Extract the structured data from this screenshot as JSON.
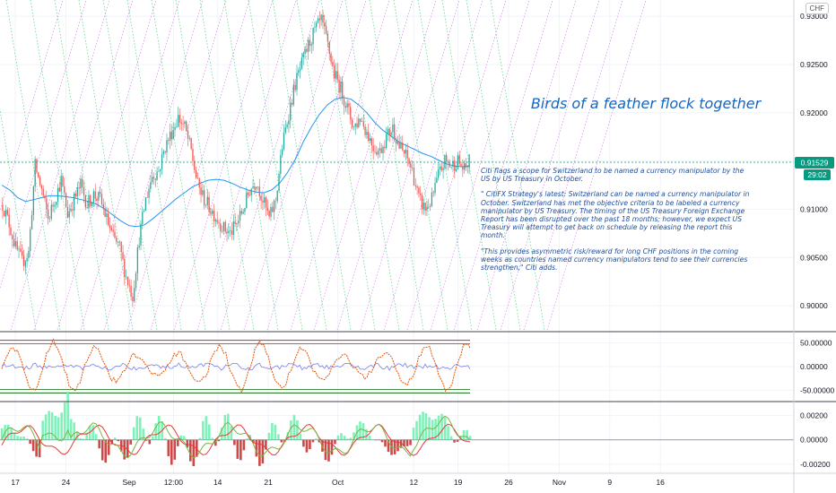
{
  "instrument": {
    "currency_label": "CHF"
  },
  "price_badge": {
    "last": "0.91529",
    "countdown": "29:02"
  },
  "annotation": {
    "title": "Birds of a feather flock together",
    "paragraphs": [
      "Citi flags a scope for Switzerland to be named a currency manipulator by the US  by US Treasury in October.",
      "\" CitiFX Strategy's latest: Switzerland can be named a currency manipulator in October. Switzerland has met the objective criteria to be labeled a currency manipulator by US Treasury. The timing of the US Treasury Foreign Exchange Report has been disrupted over the past 18 months; however, we expect US Treasury will attempt to get back on schedule by releasing the report this month.",
      "\"This provides asymmetric risk/reward for long CHF positions in the coming weeks as countries named currency manipulators tend to see their currencies strengthen,\" Citi adds."
    ]
  },
  "colors": {
    "up": "#26a69a",
    "down": "#ef5350",
    "ma": "#2196f3",
    "fan_up": "#d36cf5",
    "fan_down": "#2ecc71",
    "osc_orange": "#e65100",
    "osc_blue": "#7b7fe0",
    "level_red": "#e53935",
    "level_green": "#2e7d32",
    "last_price": "#089981",
    "hist_up": "#69f0ae",
    "hist_down": "#c62828",
    "macd_green": "#7cb342",
    "macd_red": "#e53935"
  },
  "chart_data": [
    {
      "type": "candlestick",
      "pane": "price",
      "ylim": [
        0.8975,
        0.9315
      ],
      "y_ticks": [
        "0.93000",
        "0.92500",
        "0.92000",
        "0.91500",
        "0.91000",
        "0.90500",
        "0.90000"
      ],
      "y_tick_values": [
        0.93,
        0.925,
        0.92,
        0.915,
        0.91,
        0.905,
        0.9
      ],
      "x_ticks": [
        "17",
        "24",
        "Sep",
        "12:00",
        "14",
        "21",
        "Oct",
        "12",
        "19",
        "26",
        "Nov",
        "9",
        "16"
      ],
      "x_tick_bars": [
        2,
        10,
        20,
        27,
        34,
        42,
        53,
        65,
        72,
        80,
        88,
        96,
        104
      ],
      "last_price": 0.91529,
      "close_path": [
        0.9105,
        0.9085,
        0.906,
        0.9045,
        0.9055,
        0.9145,
        0.912,
        0.909,
        0.911,
        0.913,
        0.9095,
        0.911,
        0.9125,
        0.9105,
        0.9115,
        0.911,
        0.909,
        0.907,
        0.906,
        0.903,
        0.901,
        0.907,
        0.911,
        0.9135,
        0.914,
        0.9165,
        0.918,
        0.9195,
        0.9185,
        0.916,
        0.9125,
        0.911,
        0.91,
        0.909,
        0.908,
        0.9075,
        0.9085,
        0.91,
        0.912,
        0.913,
        0.911,
        0.909,
        0.911,
        0.9165,
        0.92,
        0.923,
        0.925,
        0.927,
        0.9285,
        0.9295,
        0.927,
        0.924,
        0.9225,
        0.9205,
        0.9185,
        0.9195,
        0.918,
        0.9165,
        0.916,
        0.9175,
        0.9185,
        0.9165,
        0.9155,
        0.914,
        0.911,
        0.91,
        0.911,
        0.9135,
        0.915,
        0.9145,
        0.915,
        0.914,
        0.9153
      ],
      "ma_path": [
        0.9125,
        0.912,
        0.9112,
        0.9108,
        0.911,
        0.9112,
        0.9114,
        0.9114,
        0.9113,
        0.9112,
        0.911,
        0.9108,
        0.9105,
        0.91,
        0.9094,
        0.9088,
        0.9083,
        0.9082,
        0.9084,
        0.909,
        0.9097,
        0.9104,
        0.9111,
        0.9117,
        0.9123,
        0.9127,
        0.913,
        0.9131,
        0.913,
        0.9127,
        0.9123,
        0.912,
        0.9118,
        0.9117,
        0.912,
        0.9127,
        0.9138,
        0.9152,
        0.917,
        0.9185,
        0.9198,
        0.9208,
        0.9214,
        0.9216,
        0.9214,
        0.9208,
        0.92,
        0.919,
        0.9182,
        0.9176,
        0.917,
        0.9166,
        0.9162,
        0.9158,
        0.9155,
        0.9151,
        0.9147,
        0.9145,
        0.9144,
        0.9145
      ]
    },
    {
      "type": "line",
      "pane": "oscillator",
      "ylim": [
        -70,
        70
      ],
      "y_ticks": [
        "50.00000",
        "0.00000",
        "-50.00000"
      ],
      "y_tick_values": [
        50,
        0,
        -50
      ],
      "levels": [
        50,
        -50
      ]
    },
    {
      "type": "bar",
      "pane": "macd",
      "ylim": [
        -0.0026,
        0.003
      ],
      "y_ticks": [
        "0.00200",
        "0.00000",
        "-0.00200"
      ],
      "y_tick_values": [
        0.002,
        0.0,
        -0.002
      ]
    }
  ]
}
